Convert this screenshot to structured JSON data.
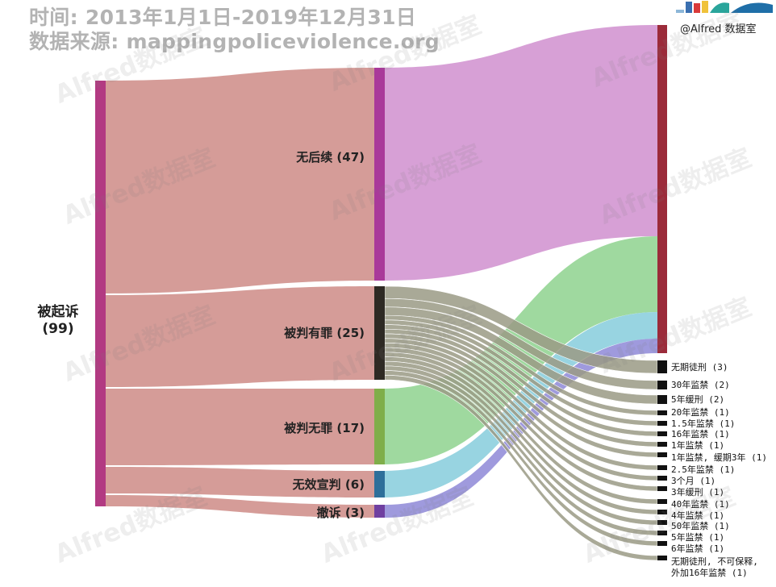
{
  "header": {
    "line1": "时间: 2013年1月1日-2019年12月31日",
    "line2": "数据来源: mappingpoliceviolence.org"
  },
  "credit": "@Alfred 数据室",
  "watermark": "Alfred数据室",
  "colors": {
    "left_bar": "#b23a82",
    "left_link": "#d59c98",
    "right_bar": "#9b2b3a",
    "node_no_followup": "#a9399a",
    "node_guilty": "#2e2a24",
    "node_not_guilty": "#7fae4a",
    "node_mistrial": "#2e6f9a",
    "node_dropped": "#6f3fa0",
    "link_no_followup": "#d59bd4",
    "link_guilty": "#9a9a85",
    "link_not_guilty": "#9ad79a",
    "link_mistrial": "#92d2df",
    "link_dropped": "#9a95db",
    "sentence_node": "#111111"
  },
  "diagram": {
    "source": {
      "name": "被起诉",
      "value": "(99)"
    },
    "outcomes": [
      {
        "label": "无后续 (47)"
      },
      {
        "label": "被判有罪 (25)"
      },
      {
        "label": "被判无罪 (17)"
      },
      {
        "label": "无效宣判 (6)"
      },
      {
        "label": "撤诉 (3)"
      }
    ],
    "sentences": [
      {
        "label": "无期徒刑 (3)"
      },
      {
        "label": "30年监禁 (2)"
      },
      {
        "label": "5年缓刑 (2)"
      },
      {
        "label": "20年监禁 (1)"
      },
      {
        "label": "1.5年监禁 (1)"
      },
      {
        "label": "16年监禁 (1)"
      },
      {
        "label": "1年监禁 (1)"
      },
      {
        "label": "1年监禁, 缓期3年 (1)"
      },
      {
        "label": "2.5年监禁 (1)"
      },
      {
        "label": "3个月 (1)"
      },
      {
        "label": "3年缓刑 (1)"
      },
      {
        "label": "40年监禁 (1)"
      },
      {
        "label": "4年监禁 (1)"
      },
      {
        "label": "50年监禁 (1)"
      },
      {
        "label": "5年监禁 (1)"
      },
      {
        "label": "6年监禁 (1)"
      },
      {
        "label_line1": "无期徒刑, 不可保释,",
        "label_line2": "外加16年监禁 (1)"
      }
    ]
  }
}
